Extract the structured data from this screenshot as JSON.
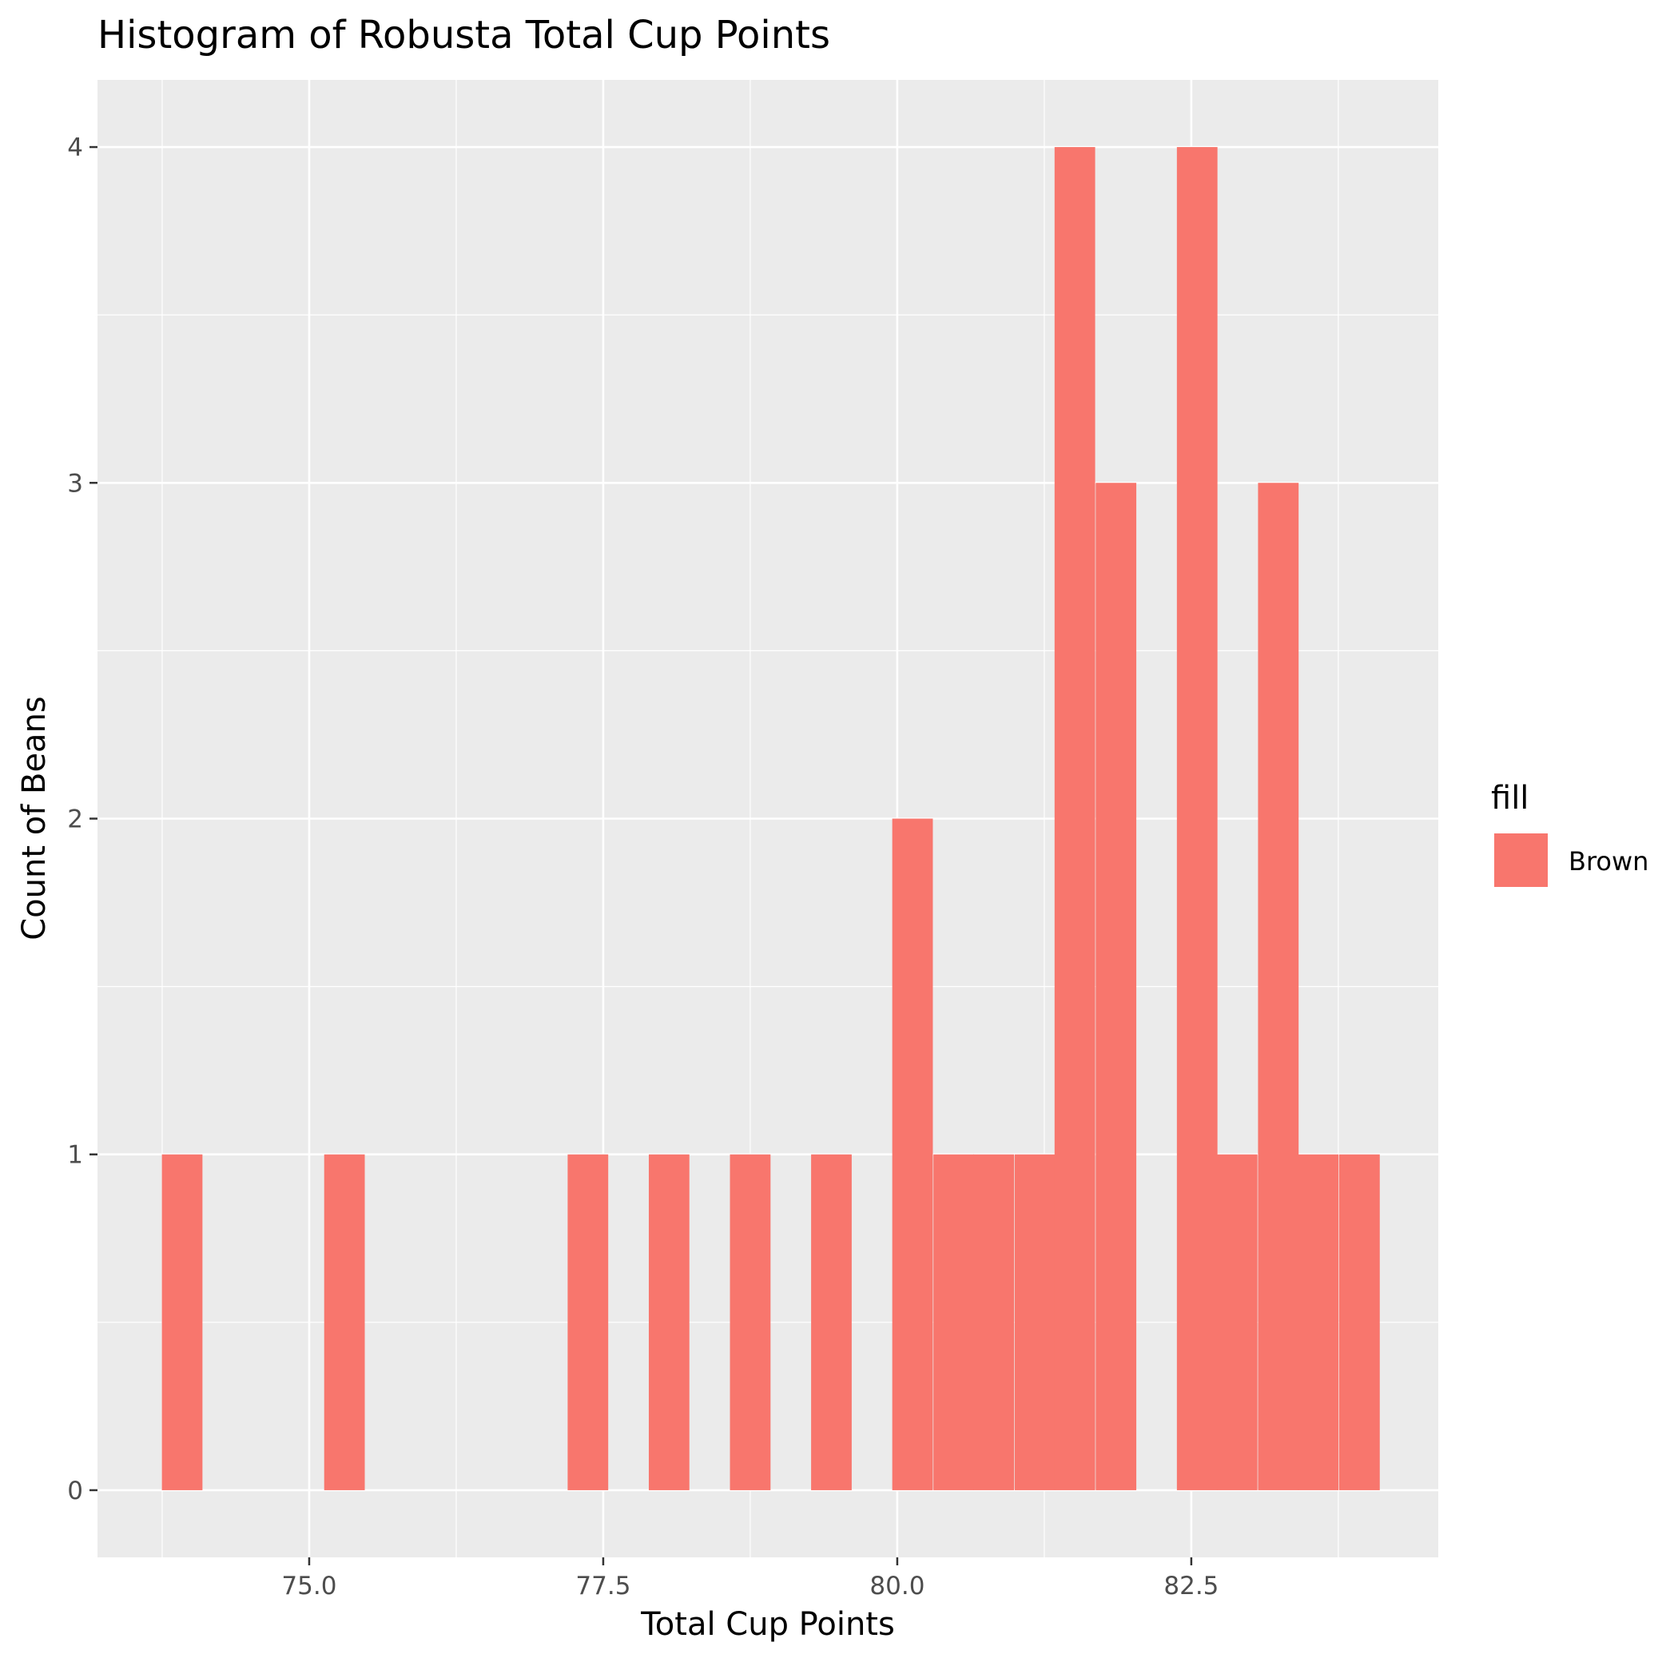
{
  "chart_data": {
    "type": "bar",
    "title": "Histogram of Robusta Total Cup Points",
    "xlabel": "Total Cup Points",
    "ylabel": "Count of Beans",
    "xlim": [
      73.2,
      84.6
    ],
    "ylim": [
      -0.2,
      4.2
    ],
    "x_ticks": [
      75.0,
      77.5,
      80.0,
      82.5
    ],
    "x_tick_labels": [
      "75.0",
      "77.5",
      "80.0",
      "82.5"
    ],
    "y_ticks": [
      0,
      1,
      2,
      3,
      4
    ],
    "y_tick_labels": [
      "0",
      "1",
      "2",
      "3",
      "4"
    ],
    "bin_width": 0.345,
    "bins": [
      {
        "x": 73.92,
        "count": 1
      },
      {
        "x": 75.3,
        "count": 1
      },
      {
        "x": 77.37,
        "count": 1
      },
      {
        "x": 78.06,
        "count": 1
      },
      {
        "x": 78.75,
        "count": 1
      },
      {
        "x": 79.44,
        "count": 1
      },
      {
        "x": 80.13,
        "count": 2
      },
      {
        "x": 80.48,
        "count": 1
      },
      {
        "x": 80.82,
        "count": 1
      },
      {
        "x": 81.17,
        "count": 1
      },
      {
        "x": 81.51,
        "count": 4
      },
      {
        "x": 81.86,
        "count": 3
      },
      {
        "x": 82.55,
        "count": 4
      },
      {
        "x": 82.89,
        "count": 1
      },
      {
        "x": 83.24,
        "count": 3
      },
      {
        "x": 83.58,
        "count": 1
      },
      {
        "x": 83.93,
        "count": 1
      }
    ],
    "bar_color": "#F8766D",
    "panel_background": "#EBEBEB",
    "grid": true,
    "legend": {
      "title": "fill",
      "position": "right",
      "entries": [
        {
          "label": "Brown",
          "color": "#F8766D"
        }
      ]
    }
  }
}
